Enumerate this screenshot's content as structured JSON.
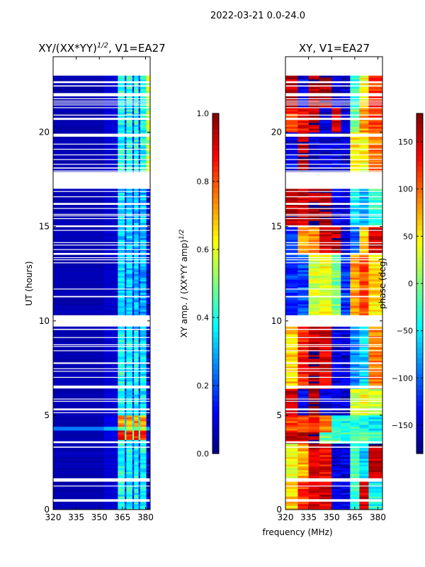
{
  "suptitle": "2022-03-21 0.0-24.0",
  "xlabel": "frequency (MHz)",
  "chart_data": [
    {
      "type": "heatmap",
      "title_main": "XY/(XX*YY)",
      "title_sup": "1/2",
      "title_suffix": ", V1=EA27",
      "ylabel": "UT (hours)",
      "xlim": [
        320,
        383
      ],
      "ylim": [
        0,
        24
      ],
      "xticks": [
        "320",
        "335",
        "350",
        "365",
        "380"
      ],
      "yticks": [
        "0",
        "5",
        "10",
        "15",
        "20"
      ],
      "colormap": "jet",
      "colorbar": {
        "label_main": "XY amp. / (XX*YY amp)",
        "label_sup": "1/2",
        "clim": [
          0,
          1
        ],
        "ticks": [
          "0.0",
          "0.2",
          "0.4",
          "0.6",
          "0.8",
          "1.0"
        ]
      },
      "freq_bins": [
        320,
        353,
        362,
        366.5,
        367.5,
        371.5,
        372.5,
        375.5,
        376.5,
        380.5,
        383
      ],
      "blocks": [
        {
          "t": [
            0,
            3.7
          ],
          "values": [
            0.05,
            0.08,
            0.4,
            0.15,
            0.38,
            0.15,
            0.38,
            0.15,
            0.38,
            0.08
          ]
        },
        {
          "t": [
            3.7,
            4.2
          ],
          "values": [
            0.05,
            0.1,
            0.86,
            0.45,
            0.86,
            0.45,
            0.86,
            0.45,
            0.86,
            0.1
          ]
        },
        {
          "t": [
            4.2,
            4.4
          ],
          "values": [
            0.25,
            0.3,
            0.5,
            0.4,
            0.5,
            0.4,
            0.5,
            0.4,
            0.5,
            0.3
          ]
        },
        {
          "t": [
            4.4,
            5.0
          ],
          "values": [
            0.05,
            0.1,
            0.72,
            0.35,
            0.72,
            0.35,
            0.72,
            0.35,
            0.72,
            0.1
          ]
        },
        {
          "t": [
            5.0,
            9.5
          ],
          "values": [
            0.05,
            0.08,
            0.4,
            0.15,
            0.38,
            0.15,
            0.38,
            0.15,
            0.36,
            0.08
          ]
        },
        {
          "t": [
            9.5,
            17.0
          ],
          "values": [
            0.05,
            0.07,
            0.34,
            0.14,
            0.32,
            0.14,
            0.32,
            0.14,
            0.3,
            0.08
          ]
        },
        {
          "t": [
            17.0,
            23.0
          ],
          "values": [
            0.05,
            0.08,
            0.4,
            0.15,
            0.4,
            0.15,
            0.4,
            0.15,
            0.38,
            0.55
          ]
        }
      ],
      "flagged": [
        [
          23.0,
          24.0
        ],
        [
          22.6,
          22.7
        ],
        [
          22.42,
          22.48
        ],
        [
          21.9,
          22.07
        ],
        [
          21.75,
          21.8
        ],
        [
          21.63,
          21.67
        ],
        [
          21.53,
          21.57
        ],
        [
          21.43,
          21.47
        ],
        [
          21.28,
          21.32
        ],
        [
          20.88,
          20.93
        ],
        [
          20.65,
          20.76
        ],
        [
          19.76,
          19.92
        ],
        [
          19.35,
          19.39
        ],
        [
          19.08,
          19.12
        ],
        [
          18.78,
          18.82
        ],
        [
          18.53,
          18.57
        ],
        [
          18.28,
          18.32
        ],
        [
          18.07,
          18.13
        ],
        [
          17.93,
          17.97
        ],
        [
          17.0,
          17.9
        ],
        [
          16.85,
          16.88
        ],
        [
          16.57,
          16.6
        ],
        [
          16.15,
          16.25
        ],
        [
          15.95,
          15.98
        ],
        [
          15.63,
          15.67
        ],
        [
          15.55,
          15.59
        ],
        [
          15.4,
          15.44
        ],
        [
          14.97,
          15.06
        ],
        [
          14.78,
          14.82
        ],
        [
          14.13,
          14.17
        ],
        [
          14.0,
          14.04
        ],
        [
          13.76,
          13.8
        ],
        [
          13.5,
          13.6
        ],
        [
          13.33,
          13.37
        ],
        [
          13.22,
          13.26
        ],
        [
          13.06,
          13.1
        ],
        [
          11.67,
          11.71
        ],
        [
          11.25,
          11.32
        ],
        [
          9.7,
          10.3
        ],
        [
          9.52,
          9.58
        ],
        [
          9.1,
          9.14
        ],
        [
          8.72,
          8.76
        ],
        [
          8.63,
          8.67
        ],
        [
          8.4,
          8.44
        ],
        [
          7.72,
          7.8
        ],
        [
          7.45,
          7.49
        ],
        [
          7.31,
          7.35
        ],
        [
          6.99,
          7.03
        ],
        [
          6.42,
          6.57
        ],
        [
          5.84,
          5.88
        ],
        [
          5.72,
          5.76
        ],
        [
          5.26,
          5.36
        ],
        [
          5.12,
          5.16
        ],
        [
          3.52,
          3.62
        ],
        [
          3.28,
          3.34
        ],
        [
          1.48,
          1.66
        ],
        [
          1.23,
          1.27
        ],
        [
          0.42,
          0.55
        ]
      ]
    },
    {
      "type": "heatmap",
      "title_main": "XY, V1=EA27",
      "xlim": [
        320,
        383
      ],
      "ylim": [
        0,
        24
      ],
      "xticks": [
        "320",
        "335",
        "350",
        "365",
        "380"
      ],
      "yticks": [
        "0",
        "5",
        "10",
        "15",
        "20"
      ],
      "colormap": "jet",
      "colorbar": {
        "label_main": "phase (deg)",
        "clim": [
          -180,
          180
        ],
        "ticks": [
          "−150",
          "−100",
          "−50",
          "0",
          "50",
          "100",
          "150"
        ],
        "tick_values": [
          -150,
          -100,
          -50,
          0,
          50,
          100,
          150
        ]
      },
      "freq_bins": [
        320,
        328,
        335,
        342,
        350,
        356,
        362,
        368,
        374,
        383
      ],
      "blocks": [
        {
          "t": [
            0,
            1.5
          ],
          "values": [
            60,
            120,
            150,
            150,
            -150,
            -150,
            -30,
            150,
            -40
          ]
        },
        {
          "t": [
            1.5,
            3.5
          ],
          "values": [
            40,
            70,
            150,
            140,
            -150,
            -150,
            -20,
            -60,
            160
          ]
        },
        {
          "t": [
            3.5,
            4.1
          ],
          "values": [
            150,
            160,
            170,
            -10,
            -20,
            -30,
            -20,
            -10,
            -20
          ]
        },
        {
          "t": [
            4.1,
            5.0
          ],
          "values": [
            110,
            100,
            120,
            90,
            -40,
            -40,
            -30,
            -40,
            -50
          ]
        },
        {
          "t": [
            5.0,
            6.4
          ],
          "values": [
            160,
            -140,
            170,
            -150,
            -150,
            -150,
            30,
            40,
            20
          ]
        },
        {
          "t": [
            6.4,
            9.7
          ],
          "values": [
            60,
            130,
            160,
            150,
            -150,
            -150,
            -90,
            -60,
            90
          ]
        },
        {
          "t": [
            10.3,
            13.6
          ],
          "values": [
            -120,
            -110,
            30,
            40,
            0,
            -120,
            80,
            110,
            60
          ]
        },
        {
          "t": [
            13.6,
            15.0
          ],
          "values": [
            -120,
            80,
            90,
            150,
            160,
            -150,
            -100,
            60,
            150
          ]
        },
        {
          "t": [
            15.0,
            17.0
          ],
          "values": [
            160,
            150,
            170,
            160,
            -150,
            -150,
            -50,
            -80,
            -30
          ]
        },
        {
          "t": [
            17.9,
            20.0
          ],
          "values": [
            -140,
            160,
            -150,
            -150,
            -150,
            -150,
            50,
            40,
            90
          ]
        },
        {
          "t": [
            20.0,
            21.3
          ],
          "values": [
            120,
            140,
            160,
            -150,
            150,
            -150,
            0,
            80,
            120
          ]
        },
        {
          "t": [
            21.3,
            23.0
          ],
          "values": [
            150,
            -140,
            160,
            170,
            -150,
            -150,
            -30,
            40,
            120
          ]
        }
      ],
      "flagged": [
        [
          23.0,
          24.0
        ],
        [
          22.6,
          22.7
        ],
        [
          22.42,
          22.48
        ],
        [
          21.9,
          22.07
        ],
        [
          21.75,
          21.8
        ],
        [
          21.63,
          21.67
        ],
        [
          21.53,
          21.57
        ],
        [
          21.43,
          21.47
        ],
        [
          21.28,
          21.32
        ],
        [
          20.88,
          20.93
        ],
        [
          20.65,
          20.76
        ],
        [
          19.76,
          19.92
        ],
        [
          19.35,
          19.39
        ],
        [
          19.08,
          19.12
        ],
        [
          18.78,
          18.82
        ],
        [
          18.53,
          18.57
        ],
        [
          18.28,
          18.32
        ],
        [
          18.07,
          18.13
        ],
        [
          17.93,
          17.97
        ],
        [
          17.0,
          17.9
        ],
        [
          16.85,
          16.88
        ],
        [
          16.57,
          16.6
        ],
        [
          16.15,
          16.25
        ],
        [
          15.95,
          15.98
        ],
        [
          15.63,
          15.67
        ],
        [
          15.55,
          15.59
        ],
        [
          15.4,
          15.44
        ],
        [
          14.97,
          15.06
        ],
        [
          14.78,
          14.82
        ],
        [
          14.13,
          14.17
        ],
        [
          14.0,
          14.04
        ],
        [
          13.76,
          13.8
        ],
        [
          13.5,
          13.6
        ],
        [
          13.33,
          13.37
        ],
        [
          13.22,
          13.26
        ],
        [
          13.06,
          13.1
        ],
        [
          11.67,
          11.71
        ],
        [
          11.25,
          11.32
        ],
        [
          9.7,
          10.3
        ],
        [
          9.52,
          9.58
        ],
        [
          9.1,
          9.14
        ],
        [
          8.72,
          8.76
        ],
        [
          8.63,
          8.67
        ],
        [
          8.4,
          8.44
        ],
        [
          7.72,
          7.8
        ],
        [
          7.45,
          7.49
        ],
        [
          7.31,
          7.35
        ],
        [
          6.99,
          7.03
        ],
        [
          6.42,
          6.57
        ],
        [
          5.84,
          5.88
        ],
        [
          5.72,
          5.76
        ],
        [
          5.26,
          5.36
        ],
        [
          5.12,
          5.16
        ],
        [
          3.52,
          3.62
        ],
        [
          3.28,
          3.34
        ],
        [
          1.48,
          1.66
        ],
        [
          1.23,
          1.27
        ],
        [
          0.42,
          0.55
        ]
      ]
    }
  ]
}
